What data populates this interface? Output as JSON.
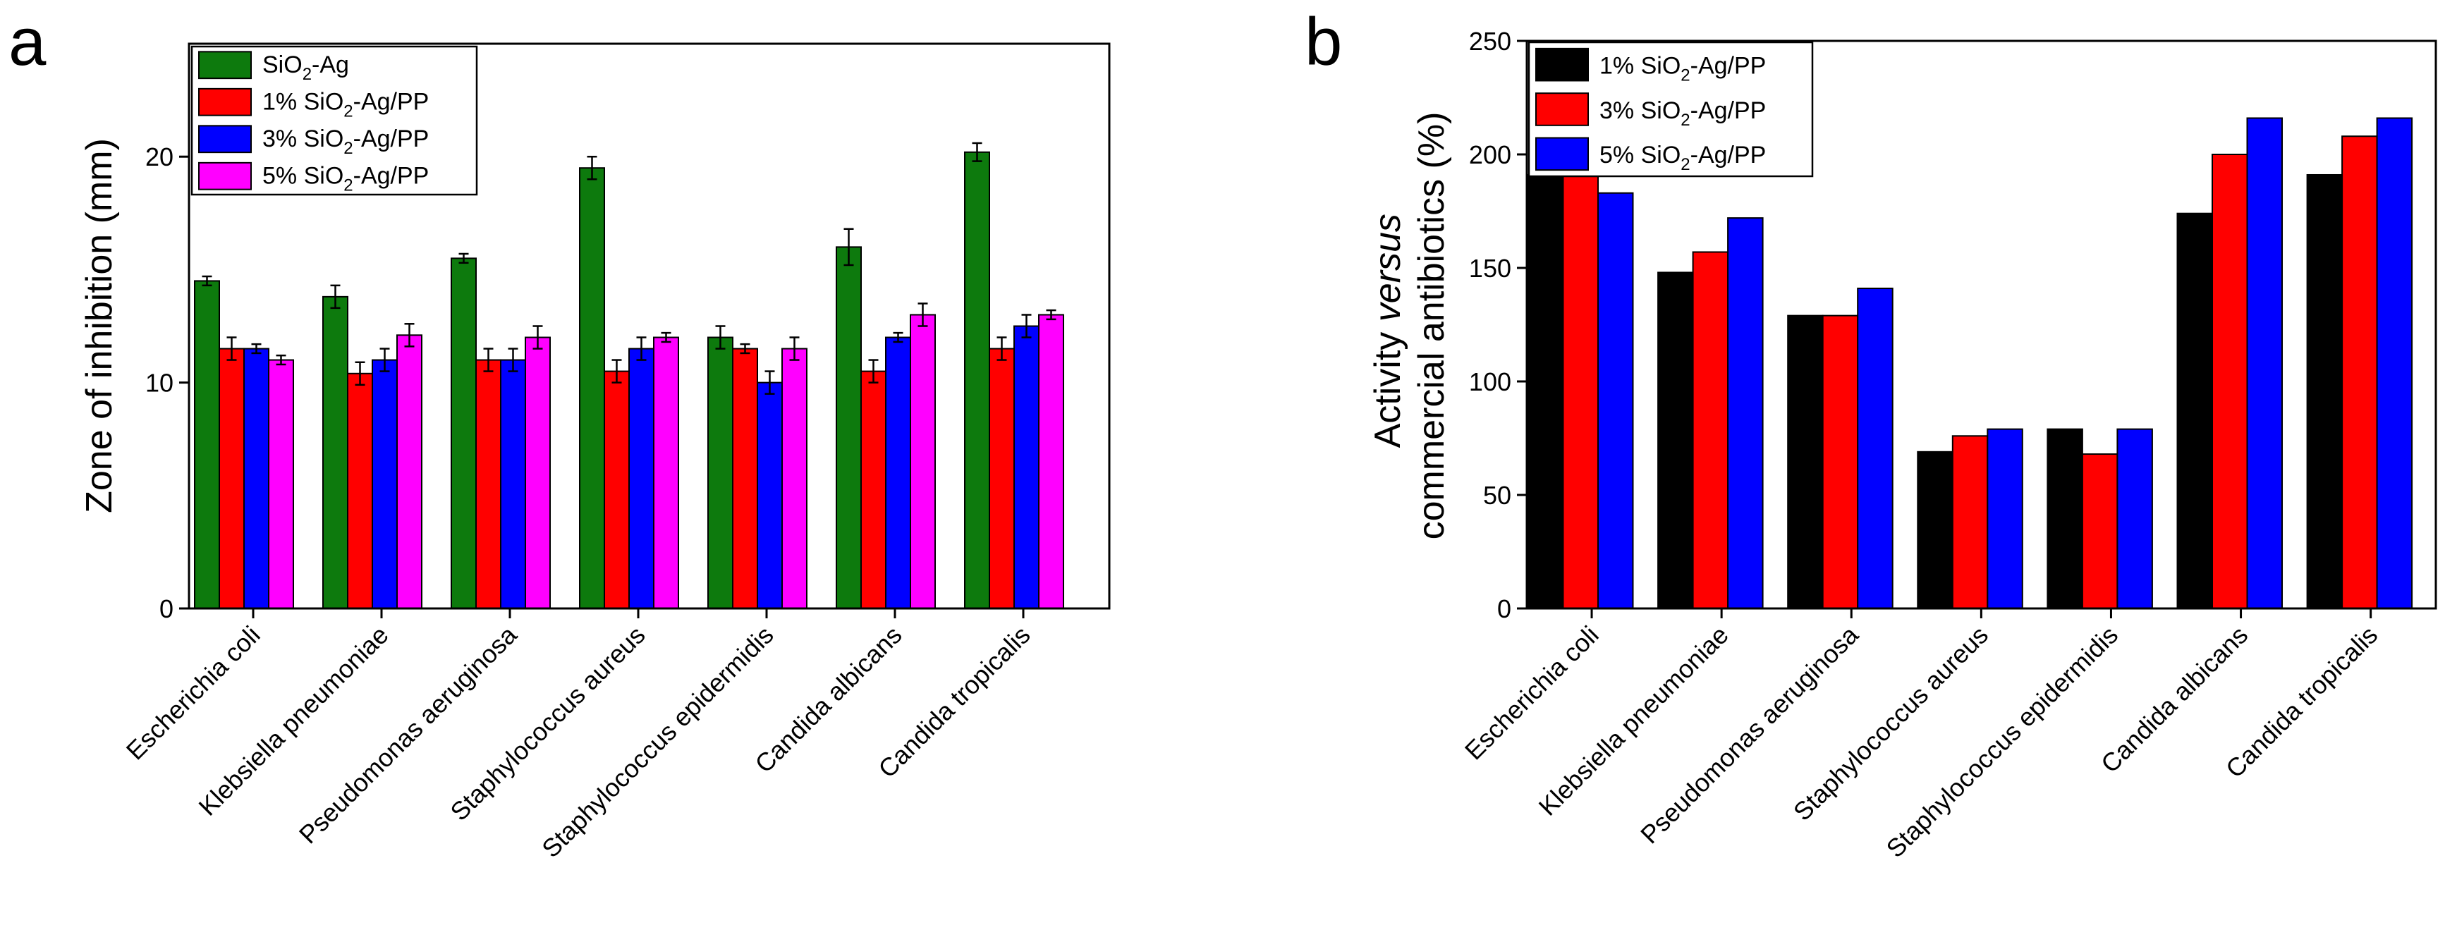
{
  "chart_data": [
    {
      "panel_label": "a",
      "type": "bar",
      "xlabel": "",
      "ylabel": "Zone of inhibition (mm)",
      "ylim": [
        0,
        25
      ],
      "yticks": [
        0,
        10,
        20
      ],
      "legend_position": "top-left",
      "categories": [
        "Escherichia coli",
        "Klebsiella pneumoniae",
        "Pseudomonas aeruginosa",
        "Staphylococcus aureus",
        "Staphylococcus epidermidis",
        "Candida albicans",
        "Candida tropicalis"
      ],
      "series": [
        {
          "name": "SiO2-Ag",
          "legend": {
            "pre": "SiO",
            "sub": "2",
            "post": "-Ag"
          },
          "color": "#0d7a0d",
          "values": [
            14.5,
            13.8,
            15.5,
            19.5,
            12.0,
            16.0,
            20.2
          ],
          "errors": [
            0.2,
            0.5,
            0.2,
            0.5,
            0.5,
            0.8,
            0.4
          ]
        },
        {
          "name": "1% SiO2-Ag/PP",
          "legend": {
            "pre": "1% SiO",
            "sub": "2",
            "post": "-Ag/PP"
          },
          "color": "#ff0000",
          "values": [
            11.5,
            10.4,
            11.0,
            10.5,
            11.5,
            10.5,
            11.5
          ],
          "errors": [
            0.5,
            0.5,
            0.5,
            0.5,
            0.2,
            0.5,
            0.5
          ]
        },
        {
          "name": "3% SiO2-Ag/PP",
          "legend": {
            "pre": "3% SiO",
            "sub": "2",
            "post": "-Ag/PP"
          },
          "color": "#0000ff",
          "values": [
            11.5,
            11.0,
            11.0,
            11.5,
            10.0,
            12.0,
            12.5
          ],
          "errors": [
            0.2,
            0.5,
            0.5,
            0.5,
            0.5,
            0.2,
            0.5
          ]
        },
        {
          "name": "5% SiO2-Ag/PP",
          "legend": {
            "pre": "5% SiO",
            "sub": "2",
            "post": "-Ag/PP"
          },
          "color": "#ff00ff",
          "values": [
            11.0,
            12.1,
            12.0,
            12.0,
            11.5,
            13.0,
            13.0
          ],
          "errors": [
            0.2,
            0.5,
            0.5,
            0.2,
            0.5,
            0.5,
            0.2
          ]
        }
      ]
    },
    {
      "panel_label": "b",
      "type": "bar",
      "xlabel": "",
      "ylabel_line1_pre": "Activity ",
      "ylabel_line1_italic": "versus",
      "ylabel_line2": "commercial antibiotics (%)",
      "ylim": [
        0,
        250
      ],
      "yticks": [
        0,
        50,
        100,
        150,
        200,
        250
      ],
      "legend_position": "top-left",
      "categories": [
        "Escherichia coli",
        "Klebsiella pneumoniae",
        "Pseudomonas aeruginosa",
        "Staphylococcus aureus",
        "Staphylococcus epidermidis",
        "Candida albicans",
        "Candida tropicalis"
      ],
      "series": [
        {
          "name": "1% SiO2-Ag/PP",
          "legend": {
            "pre": "1% SiO",
            "sub": "2",
            "post": "-Ag/PP"
          },
          "color": "#000000",
          "values": [
            191,
            148,
            129,
            69,
            79,
            174,
            191
          ]
        },
        {
          "name": "3% SiO2-Ag/PP",
          "legend": {
            "pre": "3% SiO",
            "sub": "2",
            "post": "-Ag/PP"
          },
          "color": "#ff0000",
          "values": [
            191,
            157,
            129,
            76,
            68,
            200,
            208
          ]
        },
        {
          "name": "5% SiO2-Ag/PP",
          "legend": {
            "pre": "5% SiO",
            "sub": "2",
            "post": "-Ag/PP"
          },
          "color": "#0000ff",
          "values": [
            183,
            172,
            141,
            79,
            79,
            216,
            216
          ]
        }
      ]
    }
  ]
}
